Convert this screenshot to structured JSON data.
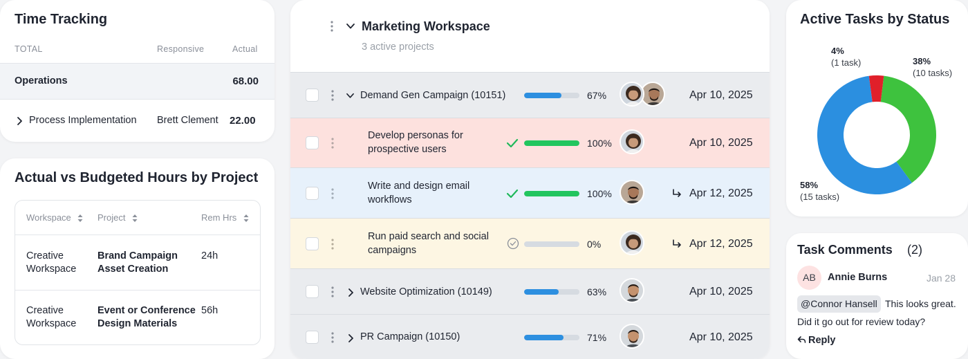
{
  "time_tracking": {
    "title": "Time Tracking",
    "col_total": "TOTAL",
    "col_responsive": "Responsive",
    "col_actual": "Actual",
    "ops_label": "Operations",
    "ops_value": "68.00",
    "proc_label": "Process Implementation",
    "proc_person": "Brett Clement",
    "proc_value": "22.00"
  },
  "budget": {
    "title": "Actual vs Budgeted Hours by Project",
    "col_workspace": "Workspace",
    "col_project": "Project",
    "col_rem": "Rem Hrs",
    "rows": [
      {
        "workspace": "Creative Workspace",
        "project": "Brand Campaign Asset Creation",
        "rem": "24h"
      },
      {
        "workspace": "Creative Workspace",
        "project": "Event or Conference Design Materials",
        "rem": "56h"
      }
    ]
  },
  "workspace": {
    "title": "Marketing Workspace",
    "subtitle": "3 active projects",
    "rows": [
      {
        "name": "Demand Gen Campaign",
        "id": "(10151)",
        "progress": 0.67,
        "pct": "67%",
        "date": "Apr 10, 2025",
        "bar_color": "#2d8fe0"
      },
      {
        "name": "Develop personas for prospective users",
        "progress": 1.0,
        "pct": "100%",
        "date": "Apr 10, 2025",
        "bar_color": "#22c55e"
      },
      {
        "name": "Write and design email workflows",
        "progress": 1.0,
        "pct": "100%",
        "date": "Apr 12, 2025",
        "bar_color": "#22c55e"
      },
      {
        "name": "Run paid search and social campaigns",
        "progress": 0.0,
        "pct": "0%",
        "date": "Apr 12, 2025",
        "bar_color": "#d6dbe1"
      },
      {
        "name": "Website Optimization",
        "id": "(10149)",
        "progress": 0.63,
        "pct": "63%",
        "date": "Apr 10, 2025",
        "bar_color": "#2d8fe0"
      },
      {
        "name": "PR Campaign",
        "id": "(10150)",
        "progress": 0.71,
        "pct": "71%",
        "date": "Apr 10, 2025",
        "bar_color": "#2d8fe0"
      }
    ]
  },
  "status_chart": {
    "title": "Active Tasks by Status",
    "slices": [
      {
        "pct": "38%",
        "count": "(10 tasks)",
        "value": 38,
        "color": "#3ec23e"
      },
      {
        "pct": "58%",
        "count": "(15 tasks)",
        "value": 58,
        "color": "#2b8fe0"
      },
      {
        "pct": "4%",
        "count": "(1 task)",
        "value": 4,
        "color": "#e0202a"
      }
    ]
  },
  "comments": {
    "title": "Task Comments",
    "count": "(2)",
    "avatar_initials": "AB",
    "author": "Annie Burns",
    "date": "Jan 28",
    "mention": "@Connor Hansell",
    "text_line1": "This looks great.",
    "text_line2": "Did it go out for review today?",
    "reply_label": "Reply"
  },
  "chart_data": {
    "type": "pie",
    "title": "Active Tasks by Status",
    "categories": [
      "38%",
      "58%",
      "4%"
    ],
    "values": [
      10,
      15,
      1
    ],
    "percent": [
      38,
      58,
      4
    ]
  }
}
